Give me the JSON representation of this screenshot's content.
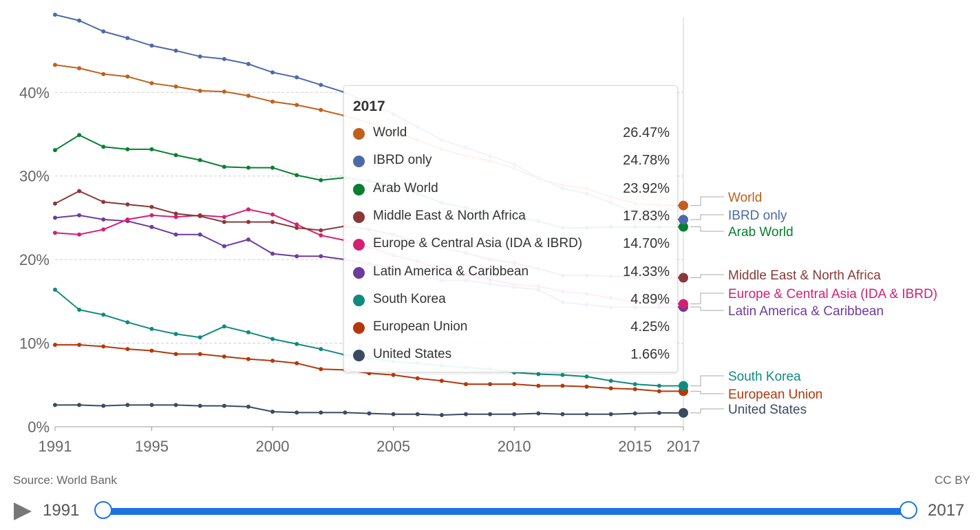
{
  "chart_data": {
    "type": "line",
    "x": [
      1991,
      1992,
      1993,
      1994,
      1995,
      1996,
      1997,
      1998,
      1999,
      2000,
      2001,
      2002,
      2003,
      2004,
      2005,
      2006,
      2007,
      2008,
      2009,
      2010,
      2011,
      2012,
      2013,
      2014,
      2015,
      2016,
      2017
    ],
    "ylim": [
      0,
      49
    ],
    "yticks": [
      0,
      10,
      20,
      30,
      40
    ],
    "ytick_labels": [
      "0%",
      "10%",
      "20%",
      "30%",
      "40%"
    ],
    "xticks": [
      1991,
      1995,
      2000,
      2005,
      2010,
      2015,
      2017
    ],
    "xtick_labels": [
      "1991",
      "1995",
      "2000",
      "2005",
      "2010",
      "2015",
      "2017"
    ],
    "grid": true,
    "series": [
      {
        "name": "World",
        "color": "#c15f1c",
        "values": [
          43.3,
          42.9,
          42.2,
          41.9,
          41.1,
          40.7,
          40.2,
          40.1,
          39.6,
          38.9,
          38.5,
          37.9,
          37.2,
          36.4,
          35.3,
          34.3,
          33.2,
          32.4,
          31.8,
          30.9,
          29.7,
          28.9,
          28.5,
          27.5,
          26.7,
          26.5,
          26.47
        ]
      },
      {
        "name": "IBRD only",
        "color": "#4d6aa8",
        "values": [
          49.3,
          48.6,
          47.3,
          46.5,
          45.6,
          45.0,
          44.3,
          44.0,
          43.4,
          42.4,
          41.8,
          40.9,
          40.0,
          38.8,
          37.4,
          35.9,
          34.3,
          33.4,
          32.4,
          31.4,
          29.8,
          28.5,
          27.9,
          26.8,
          25.6,
          24.9,
          24.78
        ]
      },
      {
        "name": "Arab World",
        "color": "#068030",
        "values": [
          33.1,
          34.9,
          33.5,
          33.2,
          33.2,
          32.5,
          31.9,
          31.1,
          31.0,
          31.0,
          30.1,
          29.5,
          29.8,
          29.4,
          28.9,
          27.9,
          26.8,
          26.2,
          25.6,
          25.2,
          24.6,
          23.8,
          23.8,
          23.9,
          23.9,
          23.9,
          23.92
        ]
      },
      {
        "name": "Middle East & North Africa",
        "color": "#893939",
        "values": [
          26.7,
          28.2,
          26.9,
          26.6,
          26.3,
          25.5,
          25.2,
          24.5,
          24.5,
          24.5,
          23.8,
          23.5,
          24.0,
          23.6,
          23.0,
          22.1,
          21.4,
          20.8,
          20.0,
          19.6,
          18.9,
          18.1,
          18.1,
          18.0,
          17.9,
          17.8,
          17.83
        ]
      },
      {
        "name": "Europe & Central Asia (IDA & IBRD)",
        "color": "#d61f72",
        "values": [
          23.2,
          23.0,
          23.6,
          24.8,
          25.3,
          25.1,
          25.3,
          25.1,
          26.0,
          25.4,
          24.2,
          22.9,
          22.3,
          21.5,
          20.5,
          19.8,
          18.8,
          18.2,
          17.6,
          17.0,
          16.8,
          16.2,
          15.9,
          15.4,
          14.9,
          14.7,
          14.7
        ]
      },
      {
        "name": "Latin America & Caribbean",
        "color": "#6c3c9e",
        "values": [
          25.0,
          25.3,
          24.8,
          24.6,
          23.9,
          23.0,
          23.0,
          21.6,
          22.4,
          20.7,
          20.4,
          20.4,
          20.0,
          19.5,
          19.0,
          18.2,
          17.5,
          17.5,
          17.1,
          16.7,
          16.4,
          14.9,
          14.6,
          14.3,
          14.3,
          14.3,
          14.33
        ]
      },
      {
        "name": "South Korea",
        "color": "#0f8a7e",
        "values": [
          16.4,
          14.0,
          13.4,
          12.5,
          11.7,
          11.1,
          10.7,
          12.0,
          11.3,
          10.5,
          9.9,
          9.3,
          8.6,
          8.2,
          7.8,
          7.6,
          7.3,
          7.1,
          6.9,
          6.5,
          6.3,
          6.2,
          6.0,
          5.5,
          5.1,
          4.9,
          4.89
        ]
      },
      {
        "name": "European Union",
        "color": "#b5370a",
        "values": [
          9.8,
          9.8,
          9.6,
          9.3,
          9.1,
          8.7,
          8.7,
          8.4,
          8.1,
          7.9,
          7.6,
          6.9,
          6.8,
          6.4,
          6.2,
          5.8,
          5.5,
          5.1,
          5.1,
          5.1,
          4.9,
          4.9,
          4.8,
          4.6,
          4.5,
          4.25,
          4.25
        ]
      },
      {
        "name": "United States",
        "color": "#3b4a61",
        "values": [
          2.6,
          2.6,
          2.5,
          2.6,
          2.6,
          2.6,
          2.5,
          2.5,
          2.4,
          1.8,
          1.7,
          1.7,
          1.7,
          1.6,
          1.5,
          1.5,
          1.4,
          1.5,
          1.5,
          1.5,
          1.6,
          1.5,
          1.5,
          1.5,
          1.6,
          1.66,
          1.66
        ]
      }
    ],
    "tooltip": {
      "title": "2017",
      "rows": [
        {
          "name": "World",
          "value": "26.47%",
          "color": "#c15f1c"
        },
        {
          "name": "IBRD only",
          "value": "24.78%",
          "color": "#4d6aa8"
        },
        {
          "name": "Arab World",
          "value": "23.92%",
          "color": "#068030"
        },
        {
          "name": "Middle East & North Africa",
          "value": "17.83%",
          "color": "#893939"
        },
        {
          "name": "Europe & Central Asia (IDA & IBRD)",
          "value": "14.70%",
          "color": "#d61f72"
        },
        {
          "name": "Latin America & Caribbean",
          "value": "14.33%",
          "color": "#6c3c9e"
        },
        {
          "name": "South Korea",
          "value": "4.89%",
          "color": "#0f8a7e"
        },
        {
          "name": "European Union",
          "value": "4.25%",
          "color": "#b5370a"
        },
        {
          "name": "United States",
          "value": "1.66%",
          "color": "#3b4a61"
        }
      ]
    }
  },
  "footer": {
    "source": "Source: World Bank",
    "license": "CC BY"
  },
  "timeline": {
    "start": "1991",
    "end": "2017",
    "play_icon": "play-icon",
    "accent_color": "#1b74e0"
  }
}
